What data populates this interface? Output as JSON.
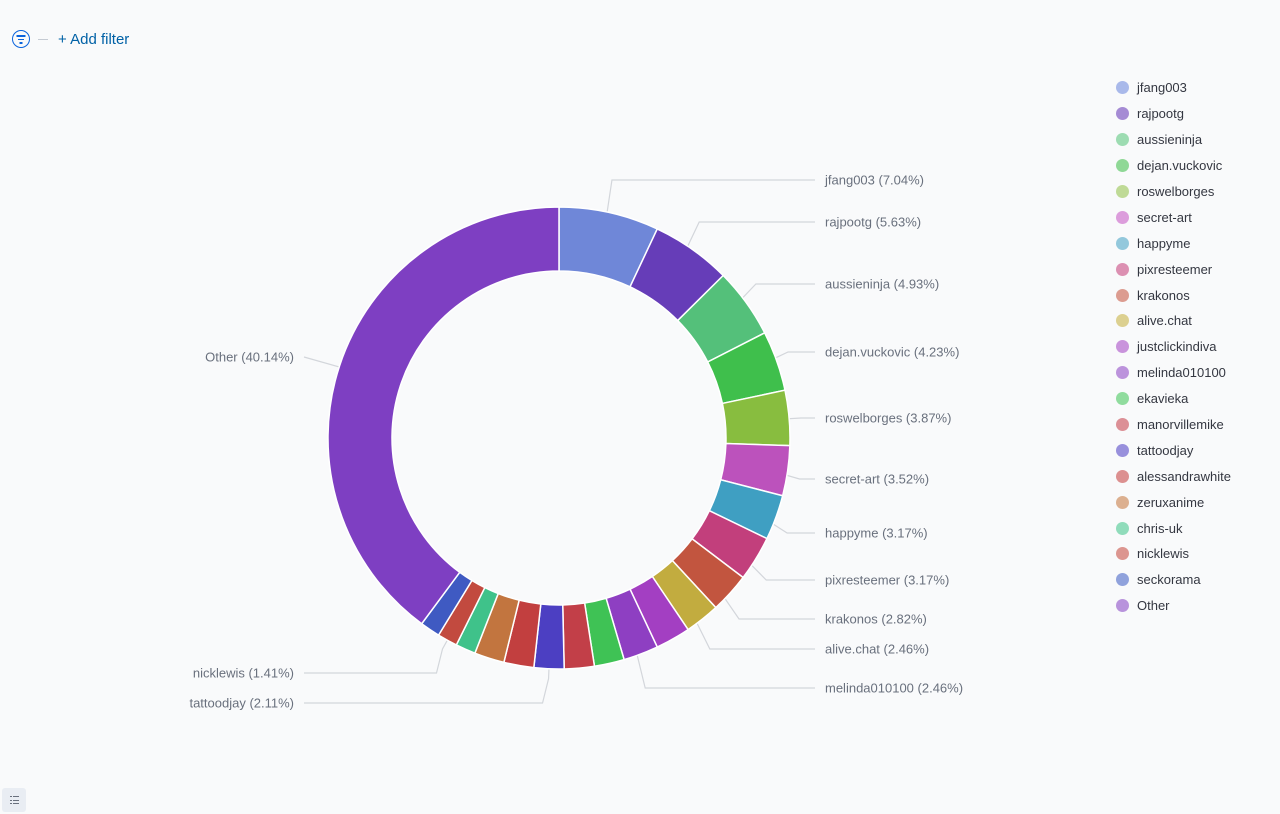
{
  "filter_bar": {
    "add_filter_label": "+ Add filter"
  },
  "chart_data": {
    "type": "pie",
    "donut": true,
    "title": "",
    "slices": [
      {
        "label": "jfang003",
        "value": 7.04,
        "display": "jfang003 (7.04%)",
        "color": "#6f87d8",
        "legend_color": "#a9b9ea",
        "show_label": true
      },
      {
        "label": "rajpootg",
        "value": 5.63,
        "display": "rajpootg (5.63%)",
        "color": "#663db8",
        "legend_color": "#a58bd4",
        "show_label": true
      },
      {
        "label": "aussieninja",
        "value": 4.93,
        "display": "aussieninja (4.93%)",
        "color": "#54c07a",
        "legend_color": "#9ddcb2",
        "show_label": true
      },
      {
        "label": "dejan.vuckovic",
        "value": 4.23,
        "display": "dejan.vuckovic (4.23%)",
        "color": "#3fbf4c",
        "legend_color": "#8fd896",
        "show_label": true
      },
      {
        "label": "roswelborges",
        "value": 3.87,
        "display": "roswelborges (3.87%)",
        "color": "#88bd3f",
        "legend_color": "#bfda96",
        "show_label": true
      },
      {
        "label": "secret-art",
        "value": 3.52,
        "display": "secret-art (3.52%)",
        "color": "#bc52bc",
        "legend_color": "#dc9ddc",
        "show_label": true
      },
      {
        "label": "happyme",
        "value": 3.17,
        "display": "happyme (3.17%)",
        "color": "#3f9fc2",
        "legend_color": "#93c8dc",
        "show_label": true
      },
      {
        "label": "pixresteemer",
        "value": 3.17,
        "display": "pixresteemer (3.17%)",
        "color": "#c23f7c",
        "legend_color": "#dc90b2",
        "show_label": true
      },
      {
        "label": "krakonos",
        "value": 2.82,
        "display": "krakonos (2.82%)",
        "color": "#c2553f",
        "legend_color": "#dc9c90",
        "show_label": true
      },
      {
        "label": "alive.chat",
        "value": 2.46,
        "display": "alive.chat (2.46%)",
        "color": "#c2ac3f",
        "legend_color": "#dcd090",
        "show_label": true
      },
      {
        "label": "justclickindiva",
        "value": 2.46,
        "display": "justclickindiva (2.46%)",
        "color": "#a33fc2",
        "legend_color": "#c993dc",
        "show_label": false
      },
      {
        "label": "melinda010100",
        "value": 2.46,
        "display": "melinda010100 (2.46%)",
        "color": "#8e3fc2",
        "legend_color": "#bc93dc",
        "show_label": true
      },
      {
        "label": "ekavieka",
        "value": 2.11,
        "display": "ekavieka (2.11%)",
        "color": "#3fc255",
        "legend_color": "#90dc9e",
        "show_label": false
      },
      {
        "label": "manorvillemike",
        "value": 2.11,
        "display": "manorvillemike (2.11%)",
        "color": "#c23f48",
        "legend_color": "#dc9096",
        "show_label": false
      },
      {
        "label": "tattoodjay",
        "value": 2.11,
        "display": "tattoodjay (2.11%)",
        "color": "#4c3fc2",
        "legend_color": "#9890dc",
        "show_label": true
      },
      {
        "label": "alessandrawhite",
        "value": 2.11,
        "display": "alessandrawhite (2.11%)",
        "color": "#c23f3f",
        "legend_color": "#dc9090",
        "show_label": false
      },
      {
        "label": "zeruxanime",
        "value": 2.11,
        "display": "zeruxanime (2.11%)",
        "color": "#c2753f",
        "legend_color": "#dcb090",
        "show_label": false
      },
      {
        "label": "chris-uk",
        "value": 1.41,
        "display": "chris-uk (1.41%)",
        "color": "#3fc28a",
        "legend_color": "#90dcbb",
        "show_label": false
      },
      {
        "label": "nicklewis",
        "value": 1.41,
        "display": "nicklewis (1.41%)",
        "color": "#c24a3f",
        "legend_color": "#dc9690",
        "show_label": true
      },
      {
        "label": "seckorama",
        "value": 1.41,
        "display": "seckorama (1.41%)",
        "color": "#3f5ac2",
        "legend_color": "#90a2dc",
        "show_label": false
      },
      {
        "label": "Other",
        "value": 40.14,
        "display": "Other (40.14%)",
        "color": "#7e3fc2",
        "legend_color": "#b893dc",
        "show_label": true
      }
    ],
    "legend": [
      "jfang003",
      "rajpootg",
      "aussieninja",
      "dejan.vuckovic",
      "roswelborges",
      "secret-art",
      "happyme",
      "pixresteemer",
      "krakonos",
      "alive.chat",
      "justclickindiva",
      "melinda010100",
      "ekavieka",
      "manorvillemike",
      "tattoodjay",
      "alessandrawhite",
      "zeruxanime",
      "chris-uk",
      "nicklewis",
      "seckorama",
      "Other"
    ],
    "legend_position": "right"
  }
}
